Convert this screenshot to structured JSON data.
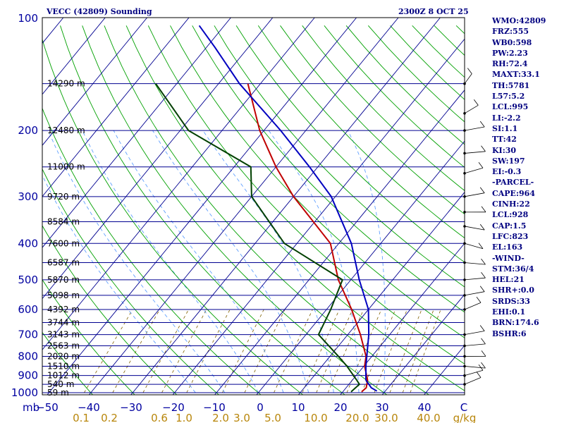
{
  "chart_data": {
    "type": "line",
    "title": "VECC (42809) Sounding",
    "timestamp": "2300Z  8 OCT 25",
    "y_axis": {
      "scale": "log-pressure",
      "unit_label": "mb",
      "range": [
        1000,
        100
      ],
      "tick_labels": [
        "100",
        "200",
        "300",
        "400",
        "500",
        "600",
        "700",
        "800",
        "900",
        "1000"
      ]
    },
    "x_axis": {
      "tick_labels": [
        "−50",
        "−40",
        "−30",
        "−20",
        "−10",
        "0",
        "10",
        "20",
        "30",
        "40",
        "C"
      ]
    },
    "mixing_ratio_axis": {
      "tick_labels": [
        "0.1",
        "0.2",
        "0.6",
        "1.0",
        "2.0",
        "3.0",
        "5.0",
        "10.0",
        "20.0",
        "30.0",
        "40.0",
        "g/kg"
      ]
    },
    "height_labels": [
      {
        "p": 150,
        "label": "14290 m"
      },
      {
        "p": 200,
        "label": "12480 m"
      },
      {
        "p": 250,
        "label": "11000 m"
      },
      {
        "p": 300,
        "label": "9720 m"
      },
      {
        "p": 350,
        "label": "8584 m"
      },
      {
        "p": 400,
        "label": "7600 m"
      },
      {
        "p": 450,
        "label": "6587 m"
      },
      {
        "p": 500,
        "label": "5870 m"
      },
      {
        "p": 550,
        "label": "5098 m"
      },
      {
        "p": 600,
        "label": "4392 m"
      },
      {
        "p": 650,
        "label": "3744 m"
      },
      {
        "p": 700,
        "label": "3143 m"
      },
      {
        "p": 750,
        "label": "2563 m"
      },
      {
        "p": 800,
        "label": "2020 m"
      },
      {
        "p": 850,
        "label": "1510 m"
      },
      {
        "p": 900,
        "label": "1012 m"
      },
      {
        "p": 950,
        "label": "540 m"
      },
      {
        "p": 1000,
        "label": "59 m"
      }
    ],
    "series": [
      {
        "name": "Temperature",
        "color": "#c00000",
        "points": [
          {
            "p": 995,
            "t": 24.5
          },
          {
            "p": 970,
            "t": 24.8
          },
          {
            "p": 925,
            "t": 23.6
          },
          {
            "p": 850,
            "t": 20.2
          },
          {
            "p": 800,
            "t": 18.6
          },
          {
            "p": 700,
            "t": 13.0
          },
          {
            "p": 600,
            "t": 6.0
          },
          {
            "p": 500,
            "t": -3.0
          },
          {
            "p": 400,
            "t": -12.0
          },
          {
            "p": 300,
            "t": -30.0
          },
          {
            "p": 250,
            "t": -40.0
          },
          {
            "p": 200,
            "t": -51.0
          },
          {
            "p": 150,
            "t": -63.0
          }
        ]
      },
      {
        "name": "Dewpoint",
        "color": "#004000",
        "points": [
          {
            "p": 995,
            "t": 22.0
          },
          {
            "p": 950,
            "t": 22.5
          },
          {
            "p": 925,
            "t": 21.0
          },
          {
            "p": 850,
            "t": 16.0
          },
          {
            "p": 800,
            "t": 12.0
          },
          {
            "p": 700,
            "t": 3.0
          },
          {
            "p": 600,
            "t": 1.0
          },
          {
            "p": 500,
            "t": -2.0
          },
          {
            "p": 400,
            "t": -23.0
          },
          {
            "p": 300,
            "t": -40.0
          },
          {
            "p": 250,
            "t": -46.0
          },
          {
            "p": 200,
            "t": -68.0
          },
          {
            "p": 150,
            "t": -85.0
          }
        ]
      },
      {
        "name": "Parcel",
        "color": "#0000c0",
        "points": [
          {
            "p": 990,
            "t": 28.0
          },
          {
            "p": 970,
            "t": 26.0
          },
          {
            "p": 925,
            "t": 23.2
          },
          {
            "p": 850,
            "t": 20.5
          },
          {
            "p": 700,
            "t": 15.0
          },
          {
            "p": 600,
            "t": 10.0
          },
          {
            "p": 500,
            "t": 2.0
          },
          {
            "p": 400,
            "t": -7.0
          },
          {
            "p": 300,
            "t": -21.0
          },
          {
            "p": 250,
            "t": -32.0
          },
          {
            "p": 200,
            "t": -46.0
          },
          {
            "p": 150,
            "t": -65.0
          },
          {
            "p": 120,
            "t": -78.0
          },
          {
            "p": 105,
            "t": -86.0
          }
        ]
      }
    ]
  },
  "indices": [
    "WMO:42809",
    "FRZ:555",
    "WB0:598",
    "PW:2.23",
    "RH:72.4",
    "MAXT:33.1",
    "TH:5781",
    "L57:5.2",
    "LCL:995",
    "LI:-2.2",
    "SI:1.1",
    "TT:42",
    "KI:30",
    "SW:197",
    "EI:-0.3",
    "-PARCEL-",
    "CAPE:964",
    "CINH:22",
    "LCL:928",
    "CAP:1.5",
    "LFC:823",
    "EL:163",
    "-WIND-",
    "STM:36/4",
    "HEL:21",
    "SHR+:0.0",
    "SRDS:33",
    "EHI:0.1",
    "BRN:174.6",
    "BSHR:6"
  ],
  "colors": {
    "isobar": "#000090",
    "isotherm": "#000090",
    "dry_adiabat": "#00a000",
    "moist_adiabat": "#60a0ff",
    "mixing_ratio": "#806000",
    "frame": "#000000"
  }
}
